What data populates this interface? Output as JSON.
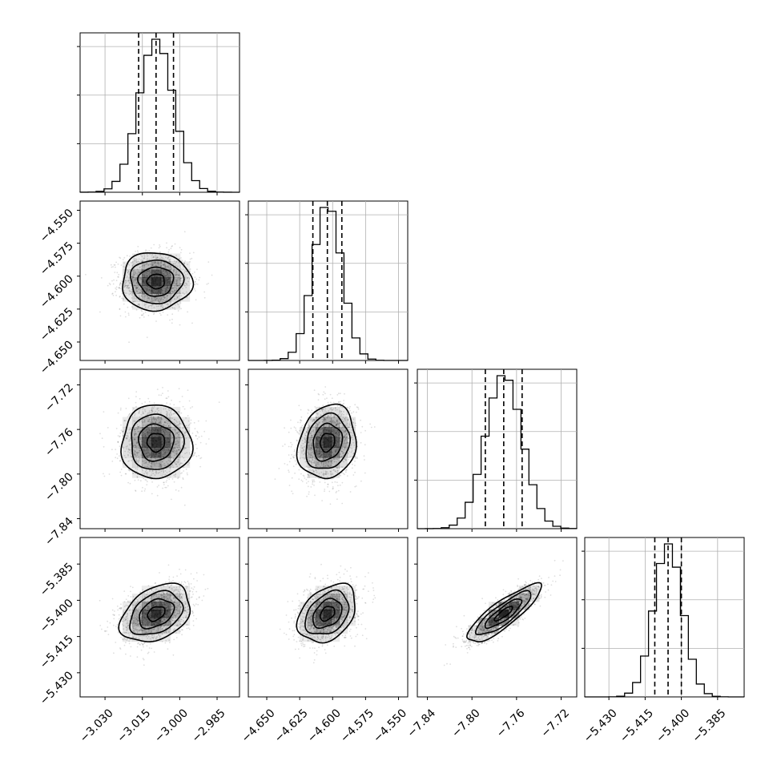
{
  "chart_data": {
    "type": "corner",
    "parameters": [
      {
        "median": -3.0095,
        "sigma": 0.007,
        "range": [
          -3.04,
          -2.976
        ],
        "quantiles": [
          -3.0165,
          -3.0095,
          -3.0025
        ],
        "ticks": [
          -3.03,
          -3.015,
          -3.0,
          -2.985
        ],
        "tick_labels": [
          "−3.030",
          "−3.015",
          "−3.000",
          "−2.985"
        ]
      },
      {
        "median": -4.604,
        "sigma": 0.011,
        "range": [
          -4.664,
          -4.543
        ],
        "quantiles": [
          -4.615,
          -4.604,
          -4.593
        ],
        "ticks": [
          -4.65,
          -4.625,
          -4.6,
          -4.575,
          -4.55
        ],
        "tick_labels": [
          "−4.650",
          "−4.625",
          "−4.600",
          "−4.575",
          "−4.550"
        ]
      },
      {
        "median": -7.7715,
        "sigma": 0.0165,
        "range": [
          -7.849,
          -7.706
        ],
        "quantiles": [
          -7.788,
          -7.7715,
          -7.755
        ],
        "ticks": [
          -7.84,
          -7.8,
          -7.76,
          -7.72
        ],
        "tick_labels": [
          "−7.84",
          "−7.80",
          "−7.76",
          "−7.72"
        ]
      },
      {
        "median": -5.4055,
        "sigma": 0.006,
        "range": [
          -5.44,
          -5.374
        ],
        "quantiles": [
          -5.411,
          -5.4055,
          -5.4
        ],
        "ticks": [
          -5.43,
          -5.415,
          -5.4,
          -5.385
        ],
        "tick_labels": [
          "−5.430",
          "−5.415",
          "−5.400",
          "−5.385"
        ]
      }
    ],
    "correlations": [
      [
        1,
        0,
        0,
        0.35
      ],
      [
        0,
        1,
        0.15,
        0.35
      ],
      [
        0,
        0.15,
        1,
        0.85
      ],
      [
        0.35,
        0.35,
        0.85,
        1
      ]
    ],
    "histogram_bins": 20,
    "quantile_levels": [
      0.16,
      0.5,
      0.84
    ],
    "contour_levels_sigma": [
      0.5,
      1,
      1.5,
      2
    ],
    "grid": true,
    "colors": {
      "line": "#000000",
      "grid": "#b0b0b0",
      "density": "#000000"
    }
  }
}
